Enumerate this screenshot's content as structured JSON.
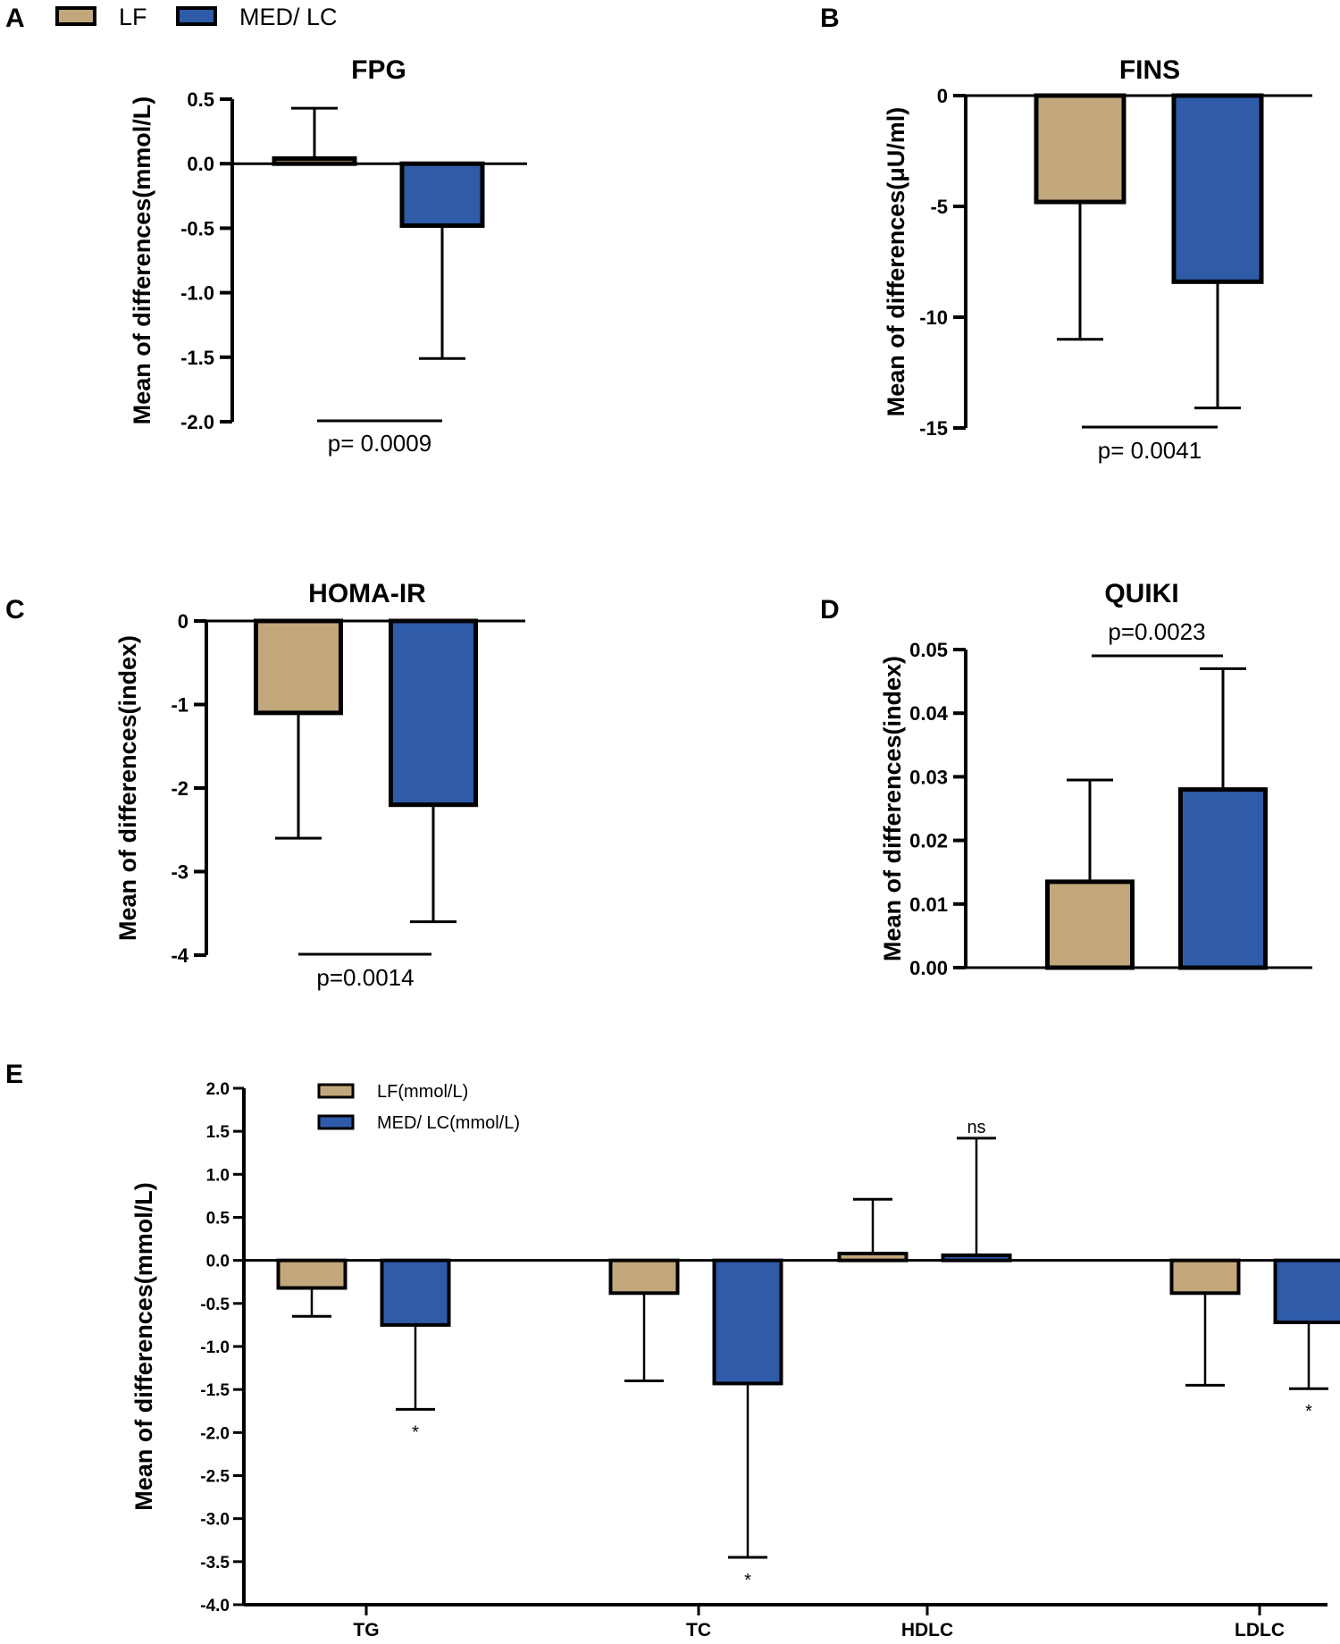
{
  "colors": {
    "lf": "#c2a77c",
    "med": "#2f5ba8",
    "stroke": "#000000"
  },
  "legend": {
    "lf": "LF",
    "med": "MED/ LC"
  },
  "chart_data": [
    {
      "panel": "A",
      "type": "bar",
      "title": "FPG",
      "ylabel": "Mean of differences(mmol/L)",
      "ylim": [
        -2.0,
        0.5
      ],
      "ticks": [
        0.5,
        0.0,
        -0.5,
        -1.0,
        -1.5,
        -2.0
      ],
      "tick_labels": [
        "0.5",
        "0.0",
        "-0.5",
        "-1.0",
        "-1.5",
        "-2.0"
      ],
      "series": [
        {
          "name": "LF",
          "value": 0.04,
          "error_end": 0.43
        },
        {
          "name": "MED/ LC",
          "value": -0.48,
          "error_end": -1.51
        }
      ],
      "annotation": "p= 0.0009"
    },
    {
      "panel": "B",
      "type": "bar",
      "title": "FINS",
      "ylabel": "Mean of differences(μU/ml)",
      "ylim": [
        -15,
        0
      ],
      "ticks": [
        0,
        -5,
        -10,
        -15
      ],
      "tick_labels": [
        "0",
        "-5",
        "-10",
        "-15"
      ],
      "series": [
        {
          "name": "LF",
          "value": -4.8,
          "error_end": -11.0
        },
        {
          "name": "MED/ LC",
          "value": -8.4,
          "error_end": -14.1
        }
      ],
      "annotation": "p= 0.0041"
    },
    {
      "panel": "C",
      "type": "bar",
      "title": "HOMA-IR",
      "ylabel": "Mean of differences(index)",
      "ylim": [
        -4,
        0
      ],
      "ticks": [
        0,
        -1,
        -2,
        -3,
        -4
      ],
      "tick_labels": [
        "0",
        "-1",
        "-2",
        "-3",
        "-4"
      ],
      "series": [
        {
          "name": "LF",
          "value": -1.1,
          "error_end": -2.6
        },
        {
          "name": "MED/ LC",
          "value": -2.2,
          "error_end": -3.6
        }
      ],
      "annotation": "p=0.0014"
    },
    {
      "panel": "D",
      "type": "bar",
      "title": "QUIKI",
      "ylabel": "Mean of differences(index)",
      "ylim": [
        0,
        0.05
      ],
      "ticks": [
        0.05,
        0.04,
        0.03,
        0.02,
        0.01,
        0.0
      ],
      "tick_labels": [
        "0.05",
        "0.04",
        "0.03",
        "0.02",
        "0.01",
        "0.00"
      ],
      "series": [
        {
          "name": "LF",
          "value": 0.0135,
          "error_end": 0.0295
        },
        {
          "name": "MED/ LC",
          "value": 0.028,
          "error_end": 0.047
        }
      ],
      "annotation": "p=0.0023"
    },
    {
      "panel": "E",
      "type": "bar",
      "ylabel": "Mean of differences(mmol/L)",
      "ylim": [
        -4.0,
        2.0
      ],
      "ticks": [
        2.0,
        1.5,
        1.0,
        0.5,
        0.0,
        -0.5,
        -1.0,
        -1.5,
        -2.0,
        -2.5,
        -3.0,
        -3.5,
        -4.0
      ],
      "tick_labels": [
        "2.0",
        "1.5",
        "1.0",
        "0.5",
        "0.0",
        "-0.5",
        "-1.0",
        "-1.5",
        "-2.0",
        "-2.5",
        "-3.0",
        "-3.5",
        "-4.0"
      ],
      "categories": [
        "TG",
        "TC",
        "HDLC",
        "LDLC"
      ],
      "legend": [
        "LF(mmol/L)",
        "MED/ LC(mmol/L)"
      ],
      "series": [
        {
          "name": "LF(mmol/L)",
          "values": [
            -0.32,
            -0.38,
            0.08,
            -0.38
          ],
          "error_ends": [
            -0.65,
            -1.4,
            0.71,
            -1.45
          ],
          "marks": [
            "",
            "",
            "",
            ""
          ]
        },
        {
          "name": "MED/ LC(mmol/L)",
          "values": [
            -0.75,
            -1.43,
            0.06,
            -0.72
          ],
          "error_ends": [
            -1.73,
            -3.45,
            1.42,
            -1.49
          ],
          "marks": [
            "*",
            "*",
            "ns",
            "*"
          ]
        }
      ]
    }
  ]
}
